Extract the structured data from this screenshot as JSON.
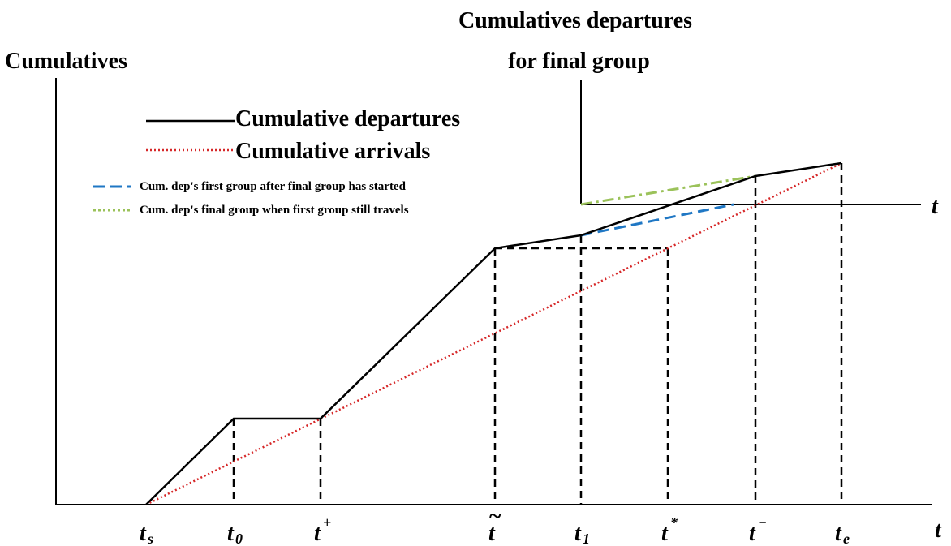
{
  "titles": {
    "left_axis": "Cumulatives",
    "right_axis_line1": "Cumulatives departures",
    "right_axis_line2": "for final group"
  },
  "axis_names": {
    "x": "t",
    "right_x": "t"
  },
  "legend": {
    "departures": "Cumulative departures",
    "arrivals": "Cumulative arrivals",
    "first_group": "Cum. dep's first group after final group has started",
    "final_group": "Cum. dep's final group when first group still travels"
  },
  "ticks": [
    {
      "key": "ts",
      "base": "t",
      "sub": "s",
      "sup": ""
    },
    {
      "key": "t0",
      "base": "t",
      "sub": "0",
      "sup": ""
    },
    {
      "key": "tplus",
      "base": "t",
      "sub": "",
      "sup": "+"
    },
    {
      "key": "ttilde",
      "base": "t",
      "sub": "",
      "sup": "",
      "accent": "~"
    },
    {
      "key": "t1",
      "base": "t",
      "sub": "1",
      "sup": ""
    },
    {
      "key": "tstar",
      "base": "t",
      "sub": "",
      "sup": "*"
    },
    {
      "key": "tminus",
      "base": "t",
      "sub": "",
      "sup": "−"
    },
    {
      "key": "te",
      "base": "t",
      "sub": "e",
      "sup": ""
    }
  ],
  "colors": {
    "departures": "#000000",
    "arrivals": "#d62728",
    "first_group": "#1f77c4",
    "final_group": "#9bc25a"
  }
}
